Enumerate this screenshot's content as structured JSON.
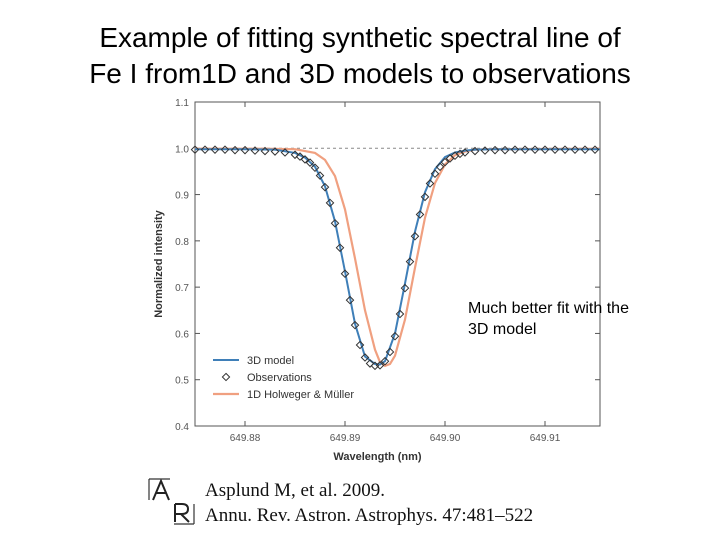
{
  "title": {
    "line1": "Example of fitting synthetic spectral line of",
    "line2": "Fe I from1D and 3D models to observations"
  },
  "annotation": {
    "line1": "Much better fit with the",
    "line2": "3D model"
  },
  "citation": {
    "line1": "Asplund M, et al. 2009.",
    "line2": "Annu. Rev. Astron. Astrophys. 47:481–522"
  },
  "colors": {
    "model3d": "#3f7fb8",
    "model1d": "#f0a080",
    "observations": "#333333",
    "reference": "#888888"
  },
  "chart_data": {
    "type": "line",
    "xlabel": "Wavelength (nm)",
    "ylabel": "Normalized intensity",
    "xlim": [
      649.875,
      649.9155
    ],
    "ylim": [
      0.4,
      1.1
    ],
    "x_ticks": [
      649.88,
      649.89,
      649.9,
      649.91
    ],
    "x_tick_labels": [
      "649.88",
      "649.89",
      "649.90",
      "649.91"
    ],
    "y_ticks": [
      0.4,
      0.5,
      0.6,
      0.7,
      0.8,
      0.9,
      1.0,
      1.1
    ],
    "y_tick_labels": [
      "0.4",
      "0.5",
      "0.6",
      "0.7",
      "0.8",
      "0.9",
      "1.0",
      "1.1"
    ],
    "reference_line": 1.0,
    "legend_position": "bottom-left",
    "series": [
      {
        "name": "3D model",
        "style": "line",
        "color": "#3f7fb8",
        "x": [
          649.875,
          649.88,
          649.883,
          649.885,
          649.886,
          649.887,
          649.888,
          649.889,
          649.89,
          649.891,
          649.892,
          649.893,
          649.8935,
          649.894,
          649.895,
          649.896,
          649.897,
          649.898,
          649.899,
          649.9,
          649.901,
          649.902,
          649.903,
          649.905,
          649.908,
          649.9155
        ],
        "y": [
          0.998,
          0.998,
          0.997,
          0.99,
          0.98,
          0.96,
          0.918,
          0.842,
          0.734,
          0.621,
          0.55,
          0.534,
          0.533,
          0.54,
          0.6,
          0.708,
          0.82,
          0.905,
          0.955,
          0.981,
          0.991,
          0.995,
          0.997,
          0.998,
          0.998,
          0.998
        ]
      },
      {
        "name": "Observations",
        "style": "markers",
        "color": "#333333",
        "x": [
          649.875,
          649.876,
          649.877,
          649.878,
          649.879,
          649.88,
          649.881,
          649.882,
          649.883,
          649.884,
          649.885,
          649.8855,
          649.886,
          649.8865,
          649.887,
          649.8875,
          649.888,
          649.8885,
          649.889,
          649.8895,
          649.89,
          649.8905,
          649.891,
          649.8915,
          649.892,
          649.8925,
          649.893,
          649.8935,
          649.894,
          649.8945,
          649.895,
          649.8955,
          649.896,
          649.8965,
          649.897,
          649.8975,
          649.898,
          649.8985,
          649.899,
          649.8995,
          649.9,
          649.9005,
          649.901,
          649.9015,
          649.902,
          649.903,
          649.904,
          649.905,
          649.906,
          649.907,
          649.908,
          649.909,
          649.91,
          649.911,
          649.912,
          649.913,
          649.914,
          649.915
        ],
        "y": [
          0.997,
          0.997,
          0.997,
          0.997,
          0.996,
          0.996,
          0.995,
          0.994,
          0.993,
          0.991,
          0.986,
          0.982,
          0.976,
          0.969,
          0.958,
          0.941,
          0.916,
          0.882,
          0.838,
          0.785,
          0.729,
          0.672,
          0.618,
          0.575,
          0.548,
          0.535,
          0.53,
          0.531,
          0.54,
          0.56,
          0.594,
          0.642,
          0.698,
          0.755,
          0.81,
          0.857,
          0.895,
          0.924,
          0.945,
          0.96,
          0.97,
          0.978,
          0.984,
          0.988,
          0.991,
          0.994,
          0.995,
          0.996,
          0.996,
          0.997,
          0.997,
          0.997,
          0.997,
          0.997,
          0.997,
          0.997,
          0.997,
          0.997
        ]
      },
      {
        "name": "1D Holweger & Müller",
        "style": "line",
        "color": "#f0a080",
        "x": [
          649.875,
          649.882,
          649.885,
          649.887,
          649.888,
          649.889,
          649.89,
          649.891,
          649.892,
          649.893,
          649.8935,
          649.894,
          649.8945,
          649.895,
          649.896,
          649.897,
          649.898,
          649.899,
          649.9,
          649.901,
          649.902,
          649.903,
          649.904,
          649.9155
        ],
        "y": [
          0.999,
          0.999,
          0.998,
          0.99,
          0.975,
          0.94,
          0.868,
          0.762,
          0.65,
          0.565,
          0.538,
          0.53,
          0.534,
          0.552,
          0.63,
          0.742,
          0.85,
          0.925,
          0.965,
          0.985,
          0.993,
          0.997,
          0.998,
          0.999
        ]
      }
    ]
  }
}
